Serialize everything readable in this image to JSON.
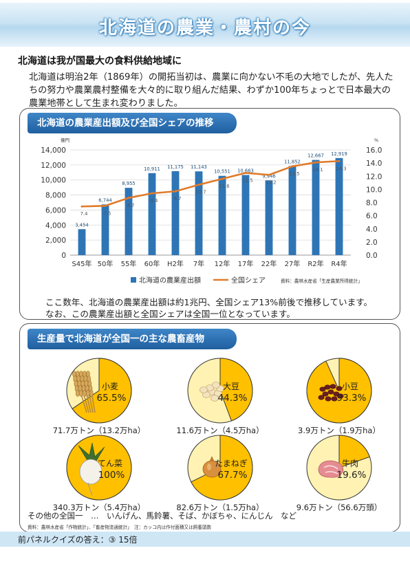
{
  "page": {
    "title": "北海道の農業・農村の今",
    "heading": "北海道は我が国最大の食料供給地域に",
    "intro": "北海道は明治2年（1869年）の開拓当初は、農業に向かない不毛の大地でしたが、先人たちの努力や農業農村整備を大々的に取り組んだ結果、わずか100年ちょっとで日本最大の農業地帯として生まれ変わりました。"
  },
  "panel1": {
    "title": "北海道の農業産出額及び全国シェアの推移",
    "note_line1": "ここ数年、北海道の農業産出額は約1兆円、全国シェア13%前後で推移しています。",
    "note_line2": "なお、この農業産出額と全国シェアは全国一位となっています。"
  },
  "panel2": {
    "title": "生産量で北海道が全国一の主な農畜産物",
    "others": "その他の全国一　…　いんげん、馬鈴薯、そば、かぼちゃ、にんじん　など",
    "source": "資料：農林水産省「作物統計」、「畜産物流通統計」　注：カッコ内は作付面積又は飼養頭数"
  },
  "footer": {
    "quiz": "前パネルクイズの答え：③ 15倍"
  },
  "colors": {
    "bar": "#2e75b6",
    "line": "#e07b2a",
    "pie_fill": "#ffc000",
    "pie_rest": "#fff2b3",
    "panel_title": "#2a6db0"
  },
  "chart_data": [
    {
      "type": "bar",
      "categories": [
        "S45年",
        "50年",
        "55年",
        "60年",
        "H2年",
        "7年",
        "12年",
        "17年",
        "22年",
        "27年",
        "R2年",
        "R4年"
      ],
      "series": [
        {
          "name": "北海道の農業産出額",
          "axis": "left",
          "values": [
            3454,
            6744,
            8955,
            10911,
            11175,
            11143,
            10551,
            10663,
            9946,
            11852,
            12667,
            12919
          ]
        },
        {
          "name": "全国シェア",
          "type": "line",
          "axis": "right",
          "values": [
            7.4,
            7.5,
            8.7,
            9.4,
            9.7,
            10.7,
            11.6,
            12.5,
            12.2,
            13.5,
            14.1,
            14.3
          ]
        }
      ],
      "ylabel": "億円",
      "ylabel_right": "%",
      "ylim": [
        0,
        14000
      ],
      "ylim_right": [
        0,
        16.0
      ],
      "yticks": [
        0,
        2000,
        4000,
        6000,
        8000,
        10000,
        12000,
        14000
      ],
      "yticks_right": [
        0.0,
        2.0,
        4.0,
        6.0,
        8.0,
        10.0,
        12.0,
        14.0,
        16.0
      ],
      "yticks_right_labels": [
        "0.0",
        "2.0",
        "4.0",
        "6.0",
        "8.0",
        "10.0",
        "12.0",
        "14.0",
        "16.0"
      ],
      "bar_labels": [
        "3,454",
        "6,744",
        "8,955",
        "10,911",
        "11,175",
        "11,143",
        "10,551",
        "10,663",
        "9,946",
        "11,852",
        "12,667",
        "12,919"
      ],
      "line_labels": [
        "7.4",
        "7.5",
        "8.7",
        "9.4",
        "9.7",
        "10.7",
        "11.6",
        "12.5",
        "12.2",
        "13.5",
        "14.1",
        "14.3"
      ],
      "source": "資料：農林水産省「生産農業所得統計」",
      "legend": "bottom"
    },
    {
      "type": "pie",
      "items": [
        {
          "name": "小麦",
          "share": 65.5,
          "label": "65.5%",
          "caption": "71.7万トン（13.2万ha）",
          "icon": "wheat-icon"
        },
        {
          "name": "大豆",
          "share": 44.3,
          "label": "44.3%",
          "caption": "11.6万トン（4.5万ha）",
          "icon": "soybean-icon"
        },
        {
          "name": "小豆",
          "share": 93.3,
          "label": "93.3%",
          "caption": "3.9万トン（1.9万ha）",
          "icon": "azuki-bean-icon"
        },
        {
          "name": "てん菜",
          "share": 100,
          "label": "100%",
          "caption": "340.3万トン（5.4万ha）",
          "icon": "sugar-beet-icon"
        },
        {
          "name": "たまねぎ",
          "share": 67.7,
          "label": "67.7%",
          "caption": "82.6万トン（1.5万ha）",
          "icon": "onion-icon"
        },
        {
          "name": "牛肉",
          "share": 19.6,
          "label": "19.6%",
          "caption": "9.6万トン（56.6万頭）",
          "icon": "beef-icon"
        }
      ]
    }
  ]
}
